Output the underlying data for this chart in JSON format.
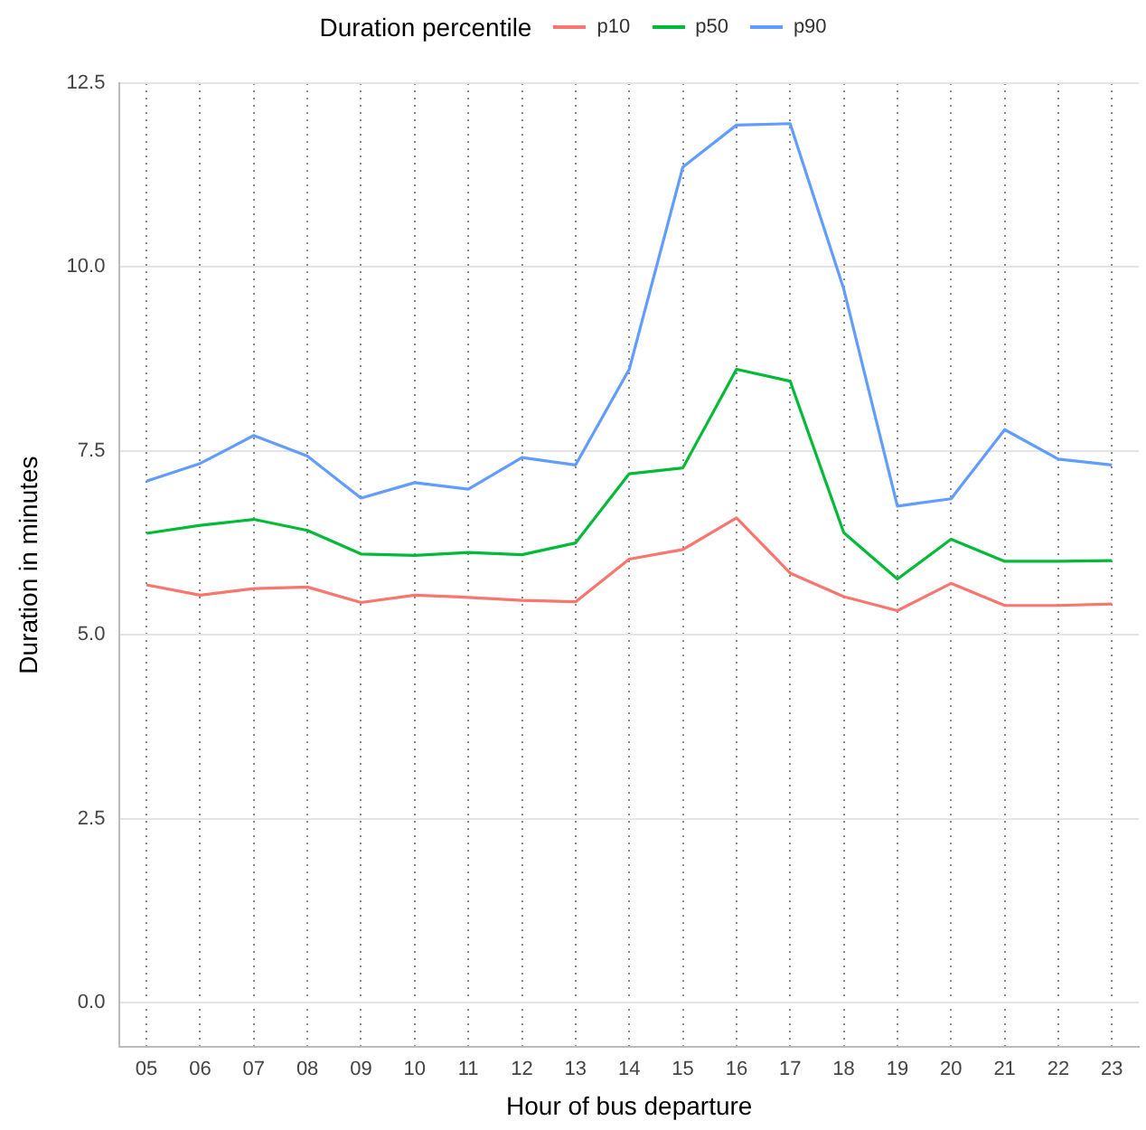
{
  "chart_data": {
    "type": "line",
    "xlabel": "Hour of bus departure",
    "ylabel": "Duration in minutes",
    "legend_title": "Duration percentile",
    "legend": "top",
    "grid": true,
    "categories": [
      "05",
      "06",
      "07",
      "08",
      "09",
      "10",
      "11",
      "12",
      "13",
      "14",
      "15",
      "16",
      "17",
      "18",
      "19",
      "20",
      "21",
      "22",
      "23"
    ],
    "ylim": [
      -0.6,
      12.5
    ],
    "yticks": [
      {
        "value": 0,
        "label": "0.0"
      },
      2.5,
      {
        "value": 5,
        "label": "5.0"
      },
      7.5,
      {
        "value": 10,
        "label": "10.0"
      },
      12.5
    ],
    "series": [
      {
        "name": "p10",
        "color": "#f8766d",
        "values": [
          5.68,
          5.54,
          5.63,
          5.65,
          5.44,
          5.54,
          5.51,
          5.47,
          5.45,
          6.03,
          6.16,
          6.59,
          5.84,
          5.52,
          5.33,
          5.7,
          5.4,
          5.4,
          5.42
        ]
      },
      {
        "name": "p50",
        "color": "#00ba38",
        "values": [
          6.38,
          6.49,
          6.57,
          6.42,
          6.1,
          6.08,
          6.12,
          6.09,
          6.25,
          7.19,
          7.27,
          8.61,
          8.45,
          6.39,
          5.76,
          6.3,
          6.0,
          6.0,
          6.01
        ]
      },
      {
        "name": "p90",
        "color": "#619cff",
        "values": [
          7.09,
          7.33,
          7.71,
          7.43,
          6.86,
          7.07,
          6.98,
          7.41,
          7.31,
          8.61,
          11.36,
          11.93,
          11.95,
          9.7,
          6.75,
          6.85,
          7.79,
          7.39,
          7.31
        ]
      }
    ]
  }
}
